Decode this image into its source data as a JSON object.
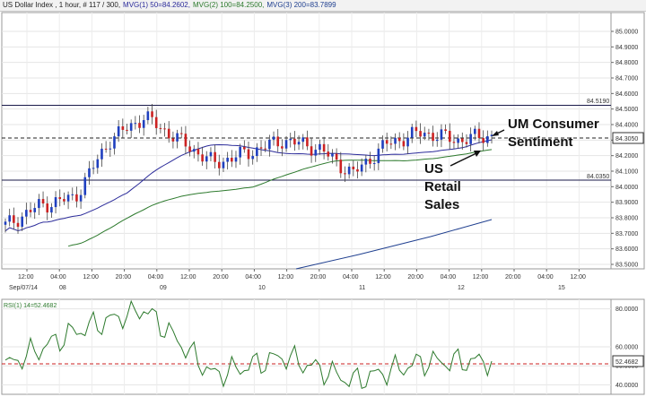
{
  "header": {
    "title": "US Dollar Index , 1 hour, # 117 / 300,",
    "ma1": "MVG(1) 50=84.2602,",
    "ma2": "MVG(2) 100=84.2500,",
    "ma3": "MVG(3) 200=83.7899"
  },
  "price_axis": {
    "ticks": [
      "85.0000",
      "84.9000",
      "84.8000",
      "84.7000",
      "84.6000",
      "84.5000",
      "84.4000",
      "84.3000",
      "84.2000",
      "84.1000",
      "84.0000",
      "83.9000",
      "83.8000",
      "83.7000",
      "83.6000",
      "83.5000"
    ],
    "level_upper": "84.5190",
    "level_lower": "84.0350",
    "current": "84.3050"
  },
  "time_axis": {
    "labels": [
      "12:00",
      "04:00",
      "12:00",
      "20:00",
      "04:00",
      "12:00",
      "20:00",
      "04:00",
      "12:00",
      "20:00",
      "04:00",
      "12:00",
      "20:00",
      "04:00",
      "12:00",
      "20:00",
      "04:00",
      "12:00"
    ],
    "dates": [
      "Sep/07/14",
      "08",
      "09",
      "10",
      "11",
      "12",
      "15"
    ]
  },
  "annotations": {
    "um_line1": "UM Consumer",
    "um_line2": "Sentiment",
    "us_line1": "US",
    "us_line2": "Retail",
    "us_line3": "Sales"
  },
  "rsi": {
    "title": "RSI(1) 14=52.4682",
    "ticks": [
      "80.0000",
      "60.0000",
      "50.0000",
      "40.0000"
    ],
    "current": "52.4682"
  },
  "colors": {
    "bull": "#1f3fbf",
    "bear": "#cc2222",
    "ma50": "#2b2b9a",
    "ma100": "#2d7a2d",
    "ma200": "#1f3f8f",
    "rsi": "#2d7a2d",
    "level": "#1a1a4a"
  },
  "chart_data": [
    {
      "type": "candlestick",
      "title": "US Dollar Index , 1 hour",
      "ylim": [
        83.45,
        85.05
      ],
      "x": [
        "Sep/07/14 12:00",
        "Sep/08 04:00",
        "Sep/08 12:00",
        "Sep/08 20:00",
        "Sep/09 04:00",
        "Sep/09 12:00",
        "Sep/09 20:00",
        "Sep/10 04:00",
        "Sep/10 12:00",
        "Sep/10 20:00",
        "Sep/11 04:00",
        "Sep/11 12:00",
        "Sep/11 20:00",
        "Sep/12 04:00",
        "Sep/12 12:00"
      ],
      "close_approx": [
        83.75,
        83.88,
        83.93,
        84.3,
        84.45,
        84.3,
        84.15,
        84.22,
        84.3,
        84.25,
        84.08,
        84.28,
        84.35,
        84.3,
        84.33
      ],
      "series": [
        {
          "name": "MVG(1) 50",
          "last": 84.2602
        },
        {
          "name": "MVG(2) 100",
          "last": 84.25
        },
        {
          "name": "MVG(3) 200",
          "last": 83.7899
        }
      ],
      "horizontal_levels": [
        84.519,
        84.035,
        84.305
      ]
    },
    {
      "type": "line",
      "title": "RSI(1) 14=52.4682",
      "ylim": [
        35,
        85
      ],
      "x": [
        "Sep/07/14 12:00",
        "Sep/08 12:00",
        "Sep/09 04:00",
        "Sep/09 20:00",
        "Sep/10 12:00",
        "Sep/11 04:00",
        "Sep/11 20:00",
        "Sep/12 12:00"
      ],
      "values": [
        50,
        68,
        80,
        45,
        55,
        42,
        52,
        52.47
      ],
      "reference_line": 50
    }
  ]
}
